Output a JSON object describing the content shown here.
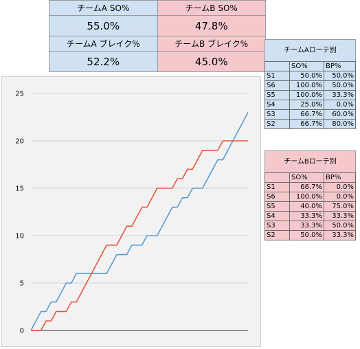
{
  "summary": {
    "team_a_so_label": "チームA SO%",
    "team_b_so_label": "チームB SO%",
    "team_a_so_value": "55.0%",
    "team_b_so_value": "47.8%",
    "team_a_break_label": "チームA ブレイク%",
    "team_b_break_label": "チームB ブレイク%",
    "team_a_break_value": "52.2%",
    "team_b_break_value": "45.0%"
  },
  "rotation_a": {
    "title": "チームAローテ別",
    "headers": [
      "",
      "SO%",
      "BP%"
    ],
    "rows": [
      [
        "S1",
        "50.0%",
        "50.0%"
      ],
      [
        "S6",
        "100.0%",
        "50.0%"
      ],
      [
        "S5",
        "100.0%",
        "33.3%"
      ],
      [
        "S4",
        "25.0%",
        "0.0%"
      ],
      [
        "S3",
        "66.7%",
        "60.0%"
      ],
      [
        "S2",
        "66.7%",
        "80.0%"
      ]
    ]
  },
  "rotation_b": {
    "title": "チームBローテ別",
    "headers": [
      "",
      "SO%",
      "BP%"
    ],
    "rows": [
      [
        "S1",
        "66.7%",
        "0.0%"
      ],
      [
        "S6",
        "100.0%",
        "0.0%"
      ],
      [
        "S5",
        "40.0%",
        "75.0%"
      ],
      [
        "S4",
        "33.3%",
        "33.3%"
      ],
      [
        "S3",
        "33.3%",
        "50.0%"
      ],
      [
        "S2",
        "50.0%",
        "33.3%"
      ]
    ]
  },
  "colors": {
    "team_a": "#5b9bd5",
    "team_b": "#e8553f",
    "team_a_fill": "#cfe1f3",
    "team_b_fill": "#f5c9cc"
  },
  "chart_data": {
    "type": "line",
    "title": "",
    "xlabel": "",
    "ylabel": "",
    "ylim": [
      0,
      25
    ],
    "yticks": [
      0,
      5,
      10,
      15,
      20,
      25
    ],
    "grid": true,
    "legend": "none",
    "series": [
      {
        "color": "#5b9bd5",
        "x": [
          0,
          1,
          2,
          3,
          4,
          5,
          6,
          7,
          8,
          9,
          10,
          11,
          12,
          13,
          14,
          15,
          16,
          17,
          18,
          19,
          20,
          21,
          22,
          23,
          24,
          25,
          26,
          27,
          28,
          29,
          30,
          31,
          32,
          33,
          34,
          35,
          36,
          37,
          38,
          39,
          40,
          41,
          42,
          43
        ],
        "y": [
          0,
          1,
          2,
          2,
          3,
          3,
          4,
          5,
          5,
          6,
          6,
          6,
          6,
          6,
          6,
          6,
          7,
          8,
          8,
          8,
          9,
          9,
          9,
          10,
          10,
          10,
          11,
          12,
          13,
          13,
          14,
          14,
          15,
          15,
          15,
          16,
          17,
          18,
          18,
          19,
          20,
          21,
          22,
          23
        ]
      },
      {
        "color": "#e8553f",
        "x": [
          0,
          1,
          2,
          3,
          4,
          5,
          6,
          7,
          8,
          9,
          10,
          11,
          12,
          13,
          14,
          15,
          16,
          17,
          18,
          19,
          20,
          21,
          22,
          23,
          24,
          25,
          26,
          27,
          28,
          29,
          30,
          31,
          32,
          33,
          34,
          35,
          36,
          37,
          38,
          39,
          40,
          41,
          42,
          43
        ],
        "y": [
          0,
          0,
          0,
          1,
          1,
          2,
          2,
          2,
          3,
          3,
          4,
          5,
          6,
          7,
          8,
          9,
          9,
          9,
          10,
          11,
          11,
          12,
          13,
          13,
          14,
          15,
          15,
          15,
          15,
          16,
          16,
          17,
          17,
          18,
          19,
          19,
          19,
          19,
          20,
          20,
          20,
          20,
          20,
          20
        ]
      }
    ]
  }
}
